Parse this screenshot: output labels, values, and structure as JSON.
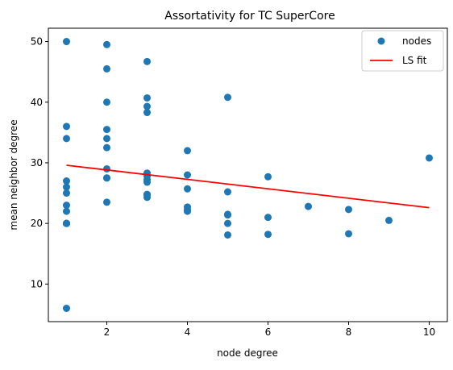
{
  "chart_data": {
    "type": "scatter",
    "title": "Assortativity for TC SuperCore",
    "xlabel": "node degree",
    "ylabel": "mean neighbor degree",
    "xlim": [
      0.55,
      10.45
    ],
    "ylim": [
      3.8,
      52.2
    ],
    "xticks": [
      2,
      4,
      6,
      8,
      10
    ],
    "yticks": [
      10,
      20,
      30,
      40,
      50
    ],
    "grid": false,
    "legend_position": "top-right",
    "colors": {
      "points": "#1f77b4",
      "fit": "#ff0000"
    },
    "series": [
      {
        "name": "nodes",
        "type": "scatter",
        "x": [
          1,
          1,
          1,
          1,
          1,
          1,
          1,
          1,
          1,
          1,
          1,
          1,
          1,
          2,
          2,
          2,
          2,
          2,
          2,
          2,
          2,
          2,
          2,
          3,
          3,
          3,
          3,
          3,
          3,
          3,
          3,
          3,
          3,
          3,
          4,
          4,
          4,
          4,
          4,
          4,
          5,
          5,
          5,
          5,
          5,
          5,
          6,
          6,
          6,
          7,
          8,
          8,
          9,
          10
        ],
        "y": [
          50.0,
          36.0,
          34.0,
          27.0,
          26.0,
          25.0,
          23.0,
          22.0,
          20.0,
          20.0,
          20.0,
          20.0,
          6.0,
          49.5,
          45.5,
          40.0,
          35.5,
          34.0,
          32.5,
          29.0,
          27.5,
          27.5,
          23.5,
          46.7,
          40.7,
          39.3,
          38.3,
          28.3,
          27.8,
          27.2,
          26.8,
          24.8,
          24.7,
          24.3,
          32.0,
          28.0,
          25.7,
          22.7,
          22.3,
          22.0,
          40.8,
          25.2,
          21.5,
          21.4,
          20.0,
          18.1,
          27.7,
          21.0,
          18.2,
          22.8,
          22.3,
          18.3,
          20.5,
          30.8
        ]
      },
      {
        "name": "LS fit",
        "type": "line",
        "x": [
          1,
          10
        ],
        "y": [
          29.6,
          22.6
        ]
      }
    ]
  }
}
